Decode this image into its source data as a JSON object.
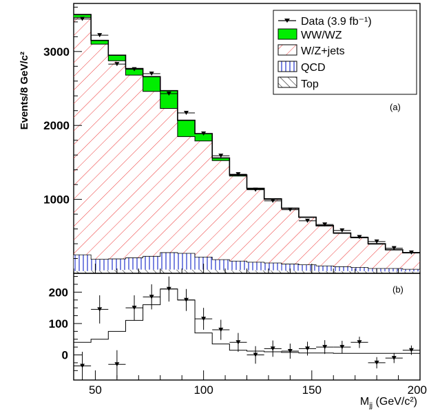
{
  "chart_data": [
    {
      "type": "bar",
      "panel_label": "(a)",
      "ylabel": "Events/8 GeV/c²",
      "ylim": [
        0,
        3650
      ],
      "y_ticks": [
        "1000",
        "2000",
        "3000"
      ],
      "legend": {
        "position": "top-right",
        "entries": [
          {
            "label": "Data (3.9 fb⁻¹)",
            "style": "marker"
          },
          {
            "label": "WW/WZ",
            "style": "solid-green"
          },
          {
            "label": "W/Z+jets",
            "style": "red-hatch"
          },
          {
            "label": "QCD",
            "style": "blue-vertical"
          },
          {
            "label": "Top",
            "style": "black-hatch"
          }
        ]
      },
      "bin_edges": [
        40,
        48,
        56,
        64,
        72,
        80,
        88,
        96,
        104,
        112,
        120,
        128,
        136,
        144,
        152,
        160,
        168,
        176,
        184,
        192,
        200
      ],
      "series": [
        {
          "name": "Top",
          "values": [
            30,
            40,
            45,
            50,
            50,
            50,
            50,
            50,
            45,
            45,
            40,
            40,
            35,
            35,
            30,
            30,
            30,
            25,
            25,
            25
          ]
        },
        {
          "name": "QCD",
          "values": [
            220,
            150,
            150,
            160,
            180,
            230,
            220,
            170,
            140,
            120,
            110,
            100,
            90,
            80,
            70,
            60,
            50,
            40,
            40,
            30
          ]
        },
        {
          "name": "W/Z+jets",
          "values": [
            3210,
            2910,
            2680,
            2470,
            2230,
            1950,
            1580,
            1570,
            1340,
            1150,
            990,
            860,
            750,
            640,
            540,
            450,
            400,
            330,
            250,
            220
          ]
        },
        {
          "name": "WW/WZ",
          "values": [
            40,
            50,
            75,
            90,
            200,
            240,
            220,
            100,
            35,
            15,
            10,
            8,
            6,
            5,
            5,
            5,
            5,
            5,
            5,
            5
          ]
        }
      ],
      "data_points": {
        "name": "Data (3.9 fb⁻¹)",
        "x": [
          44,
          52,
          60,
          68,
          76,
          84,
          92,
          100,
          108,
          116,
          124,
          132,
          140,
          148,
          156,
          164,
          172,
          180,
          188,
          196
        ],
        "y": [
          3440,
          3220,
          2830,
          2760,
          2700,
          2430,
          2170,
          1890,
          1590,
          1340,
          1130,
          980,
          860,
          710,
          660,
          580,
          490,
          430,
          340,
          280
        ]
      }
    },
    {
      "type": "scatter",
      "panel_label": "(b)",
      "xlabel": "M_jj (GeV/c²)",
      "xlim": [
        40,
        200
      ],
      "ylim": [
        -80,
        260
      ],
      "x_ticks": [
        "50",
        "100",
        "150",
        "200"
      ],
      "y_ticks": [
        "0",
        "100",
        "200"
      ],
      "diboson_step": {
        "bin_edges": [
          40,
          48,
          56,
          64,
          72,
          80,
          88,
          96,
          104,
          112,
          120,
          128,
          136,
          144,
          152,
          160,
          168,
          176,
          184,
          192,
          200
        ],
        "values": [
          40,
          50,
          75,
          110,
          160,
          210,
          175,
          70,
          35,
          15,
          12,
          10,
          8,
          6,
          6,
          5,
          5,
          5,
          5,
          5
        ]
      },
      "data_points": {
        "x": [
          44,
          52,
          60,
          68,
          76,
          84,
          92,
          100,
          108,
          116,
          124,
          132,
          140,
          148,
          156,
          164,
          172,
          180,
          188,
          196
        ],
        "y": [
          -35,
          145,
          -30,
          150,
          185,
          210,
          175,
          115,
          80,
          40,
          0,
          20,
          12,
          20,
          25,
          25,
          40,
          -25,
          -10,
          15
        ],
        "err": [
          45,
          45,
          45,
          40,
          40,
          40,
          35,
          35,
          32,
          30,
          28,
          26,
          24,
          22,
          22,
          20,
          18,
          18,
          16,
          15
        ]
      }
    }
  ]
}
